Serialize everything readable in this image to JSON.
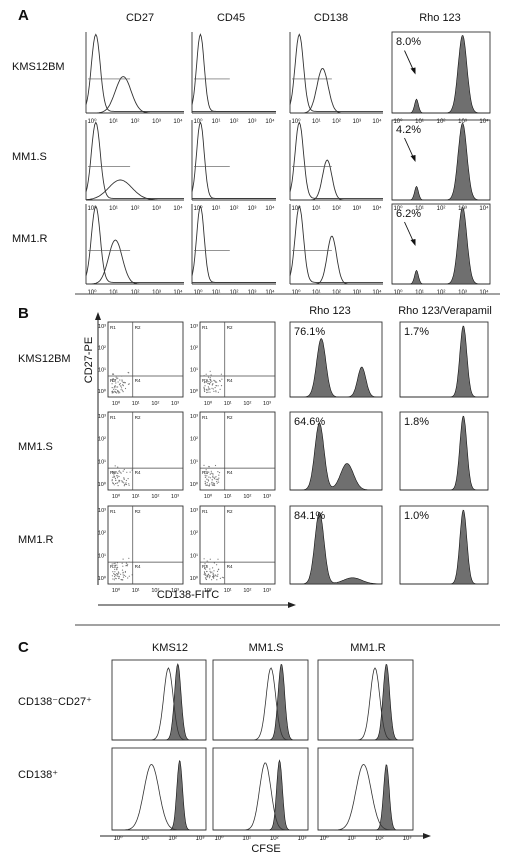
{
  "chart_data": [
    {
      "type": "histogram-panel",
      "panel_label": "A",
      "column_headers": [
        "CD27",
        "CD45",
        "CD138",
        "Rho 123"
      ],
      "row_labels": [
        "KMS12BM",
        "MM1.S",
        "MM1.R"
      ],
      "x_ticks": [
        "10⁰",
        "10¹",
        "10²",
        "10³",
        "10⁴"
      ],
      "rho123_side_population_percent": [
        "8.0%",
        "4.2%",
        "6.2%"
      ],
      "x_scale": "log",
      "xlim": [
        1,
        10000
      ]
    },
    {
      "type": "scatter+histogram-panel",
      "panel_label": "B",
      "column_headers": [
        "",
        "",
        "Rho 123",
        "Rho 123/Verapamil"
      ],
      "row_labels": [
        "KMS12BM",
        "MM1.S",
        "MM1.R"
      ],
      "ylabel": "CD27-PE",
      "xlabel": "CD138-FITC",
      "dot_ticks": [
        "10⁰",
        "10¹",
        "10²",
        "10³"
      ],
      "rho123_percent": [
        "76.1%",
        "64.6%",
        "84.1%"
      ],
      "rho123_verapamil_percent": [
        "1.7%",
        "1.8%",
        "1.0%"
      ],
      "quadrant_labels": [
        "R1",
        "R2",
        "R3",
        "R4"
      ]
    },
    {
      "type": "histogram-overlay-panel",
      "panel_label": "C",
      "column_headers": [
        "KMS12",
        "MM1.S",
        "MM1.R"
      ],
      "row_labels": [
        "CD138⁻CD27⁺",
        "CD138⁺"
      ],
      "xlabel": "CFSE",
      "x_ticks": [
        "10⁰",
        "10¹",
        "10²",
        "10³"
      ],
      "x_scale": "log"
    }
  ]
}
